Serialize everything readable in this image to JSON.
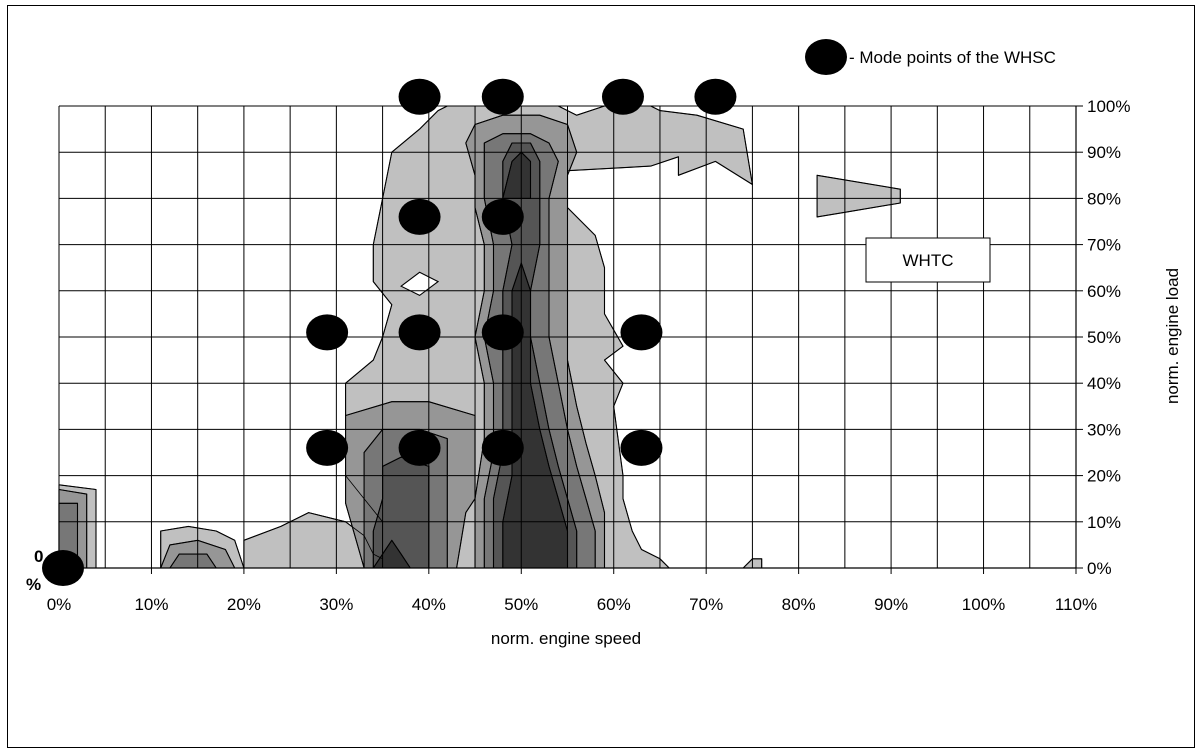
{
  "chart_data": {
    "type": "contour",
    "xlabel": "norm. engine speed",
    "ylabel": "norm. engine load",
    "xlim": [
      0,
      110
    ],
    "ylim": [
      0,
      100
    ],
    "xticks": [
      "0%",
      "10%",
      "20%",
      "30%",
      "40%",
      "50%",
      "60%",
      "70%",
      "80%",
      "90%",
      "100%",
      "110%"
    ],
    "yticks": [
      "0%",
      "10%",
      "20%",
      "30%",
      "40%",
      "50%",
      "60%",
      "70%",
      "80%",
      "90%",
      "100%"
    ],
    "grid": true,
    "legend": {
      "marker_label": "- Mode points of the WHSC",
      "position": "top-right"
    },
    "annotation": "WHTC",
    "origin_label": "0\n%",
    "mode_points": [
      {
        "x": 0,
        "y": 0
      },
      {
        "x": 29,
        "y": 26
      },
      {
        "x": 39,
        "y": 26
      },
      {
        "x": 48,
        "y": 26
      },
      {
        "x": 63,
        "y": 26
      },
      {
        "x": 29,
        "y": 51
      },
      {
        "x": 39,
        "y": 51
      },
      {
        "x": 48,
        "y": 51
      },
      {
        "x": 63,
        "y": 51
      },
      {
        "x": 39,
        "y": 76
      },
      {
        "x": 48,
        "y": 76
      },
      {
        "x": 39,
        "y": 102
      },
      {
        "x": 48,
        "y": 102
      },
      {
        "x": 61,
        "y": 102
      },
      {
        "x": 71,
        "y": 102
      }
    ],
    "contour_levels": [
      {
        "level": 1,
        "color": "#c0c0c0",
        "regions": [
          [
            [
              35,
              2
            ],
            [
              34,
              3
            ],
            [
              33,
              7
            ],
            [
              31,
              10
            ],
            [
              27,
              12
            ],
            [
              24,
              9
            ],
            [
              20,
              6
            ],
            [
              20,
              0
            ],
            [
              66,
              0
            ],
            [
              65,
              2
            ],
            [
              63,
              4
            ],
            [
              62,
              8
            ],
            [
              61,
              15
            ],
            [
              61,
              20
            ],
            [
              60,
              35
            ],
            [
              61,
              40
            ],
            [
              59,
              45
            ],
            [
              61,
              48
            ],
            [
              59,
              55
            ],
            [
              59,
              65
            ],
            [
              58,
              72
            ],
            [
              55,
              78
            ],
            [
              55,
              86
            ],
            [
              64,
              87
            ],
            [
              67,
              89
            ],
            [
              67,
              85
            ],
            [
              71,
              88
            ],
            [
              75,
              83
            ],
            [
              74,
              95
            ],
            [
              69,
              98
            ],
            [
              65,
              99
            ],
            [
              64,
              101
            ],
            [
              59,
              102
            ],
            [
              56,
              98
            ],
            [
              54,
              100
            ],
            [
              53,
              102
            ],
            [
              42,
              102
            ],
            [
              41,
              99
            ],
            [
              39,
              95
            ],
            [
              36,
              90
            ],
            [
              35,
              80
            ],
            [
              34,
              70
            ],
            [
              34,
              62
            ],
            [
              36,
              57
            ],
            [
              35,
              50
            ],
            [
              34,
              45
            ],
            [
              31,
              40
            ],
            [
              31,
              38
            ],
            [
              31,
              30
            ],
            [
              31,
              20
            ],
            [
              33,
              15
            ],
            [
              35,
              10
            ]
          ],
          [
            [
              0,
              0
            ],
            [
              0,
              18
            ],
            [
              4,
              17
            ],
            [
              4,
              0
            ]
          ],
          [
            [
              11,
              0
            ],
            [
              11,
              8
            ],
            [
              14,
              9
            ],
            [
              17,
              8
            ],
            [
              19,
              6
            ],
            [
              20,
              0
            ]
          ],
          [
            [
              82,
              85
            ],
            [
              85,
              84
            ],
            [
              91,
              82
            ],
            [
              91,
              79
            ],
            [
              85,
              77
            ],
            [
              82,
              76
            ]
          ],
          [
            [
              74,
              0
            ],
            [
              75,
              2
            ],
            [
              76,
              2
            ],
            [
              76,
              0
            ]
          ]
        ]
      },
      {
        "level": 2,
        "color": "#969696",
        "regions": [
          [
            [
              33,
              0
            ],
            [
              31,
              14
            ],
            [
              31,
              33
            ],
            [
              36,
              36
            ],
            [
              40,
              36
            ],
            [
              45,
              33
            ],
            [
              45,
              27
            ],
            [
              45,
              15
            ],
            [
              44,
              12
            ],
            [
              43,
              0
            ]
          ],
          [
            [
              45,
              0
            ],
            [
              45,
              15
            ],
            [
              46,
              28
            ],
            [
              46,
              40
            ],
            [
              45,
              50
            ],
            [
              46,
              60
            ],
            [
              46,
              70
            ],
            [
              45,
              78
            ],
            [
              45,
              85
            ],
            [
              44,
              92
            ],
            [
              45,
              96
            ],
            [
              48,
              98
            ],
            [
              52,
              98
            ],
            [
              55,
              96
            ],
            [
              56,
              90
            ],
            [
              55,
              85
            ],
            [
              55,
              75
            ],
            [
              55,
              65
            ],
            [
              55,
              55
            ],
            [
              55,
              45
            ],
            [
              56,
              35
            ],
            [
              57,
              27
            ],
            [
              58,
              20
            ],
            [
              59,
              12
            ],
            [
              59,
              6
            ],
            [
              59,
              0
            ]
          ],
          [
            [
              0,
              0
            ],
            [
              0,
              17
            ],
            [
              3,
              16
            ],
            [
              3,
              0
            ]
          ],
          [
            [
              11,
              0
            ],
            [
              12,
              5
            ],
            [
              15,
              6
            ],
            [
              18,
              4
            ],
            [
              19,
              0
            ]
          ]
        ]
      },
      {
        "level": 3,
        "color": "#777777",
        "regions": [
          [
            [
              33,
              0
            ],
            [
              33,
              10
            ],
            [
              33,
              25
            ],
            [
              35,
              30
            ],
            [
              39,
              30
            ],
            [
              42,
              28
            ],
            [
              42,
              15
            ],
            [
              42,
              5
            ],
            [
              42,
              0
            ]
          ],
          [
            [
              46,
              0
            ],
            [
              46,
              15
            ],
            [
              47,
              25
            ],
            [
              47,
              40
            ],
            [
              46,
              50
            ],
            [
              47,
              60
            ],
            [
              47,
              70
            ],
            [
              46,
              80
            ],
            [
              46,
              88
            ],
            [
              46,
              92
            ],
            [
              48,
              94
            ],
            [
              51,
              94
            ],
            [
              53,
              92
            ],
            [
              54,
              88
            ],
            [
              53,
              80
            ],
            [
              53,
              70
            ],
            [
              53,
              60
            ],
            [
              53,
              50
            ],
            [
              54,
              40
            ],
            [
              55,
              30
            ],
            [
              56,
              22
            ],
            [
              57,
              15
            ],
            [
              58,
              8
            ],
            [
              58,
              0
            ]
          ],
          [
            [
              0,
              0
            ],
            [
              0,
              14
            ],
            [
              2,
              14
            ],
            [
              2,
              0
            ]
          ],
          [
            [
              12,
              0
            ],
            [
              13,
              3
            ],
            [
              16,
              3
            ],
            [
              17,
              0
            ]
          ]
        ]
      },
      {
        "level": 4,
        "color": "#555555",
        "regions": [
          [
            [
              34,
              0
            ],
            [
              34,
              8
            ],
            [
              35,
              15
            ],
            [
              35,
              22
            ],
            [
              37,
              24
            ],
            [
              40,
              22
            ],
            [
              40,
              15
            ],
            [
              40,
              5
            ],
            [
              40,
              0
            ]
          ],
          [
            [
              47,
              0
            ],
            [
              47,
              15
            ],
            [
              48,
              25
            ],
            [
              48,
              40
            ],
            [
              48,
              50
            ],
            [
              48,
              60
            ],
            [
              49,
              70
            ],
            [
              48,
              80
            ],
            [
              48,
              88
            ],
            [
              49,
              92
            ],
            [
              51,
              92
            ],
            [
              52,
              88
            ],
            [
              52,
              80
            ],
            [
              52,
              70
            ],
            [
              51,
              60
            ],
            [
              51,
              50
            ],
            [
              52,
              40
            ],
            [
              53,
              30
            ],
            [
              54,
              22
            ],
            [
              55,
              15
            ],
            [
              56,
              8
            ],
            [
              56,
              0
            ]
          ]
        ]
      },
      {
        "level": 5,
        "color": "#333333",
        "regions": [
          [
            [
              34,
              0
            ],
            [
              35,
              3
            ],
            [
              36,
              6
            ],
            [
              37,
              3
            ],
            [
              38,
              0
            ]
          ],
          [
            [
              48,
              0
            ],
            [
              48,
              10
            ],
            [
              49,
              20
            ],
            [
              49,
              35
            ],
            [
              49,
              50
            ],
            [
              49,
              60
            ],
            [
              50,
              66
            ],
            [
              51,
              60
            ],
            [
              51,
              50
            ],
            [
              51,
              40
            ],
            [
              52,
              30
            ],
            [
              53,
              22
            ],
            [
              54,
              15
            ],
            [
              55,
              8
            ],
            [
              55,
              0
            ]
          ],
          [
            [
              48,
              80
            ],
            [
              49,
              88
            ],
            [
              50,
              90
            ],
            [
              51,
              88
            ],
            [
              51,
              80
            ]
          ]
        ]
      }
    ],
    "holes": [
      [
        [
          37,
          61
        ],
        [
          39,
          64
        ],
        [
          41,
          62
        ],
        [
          39,
          59
        ]
      ]
    ]
  }
}
